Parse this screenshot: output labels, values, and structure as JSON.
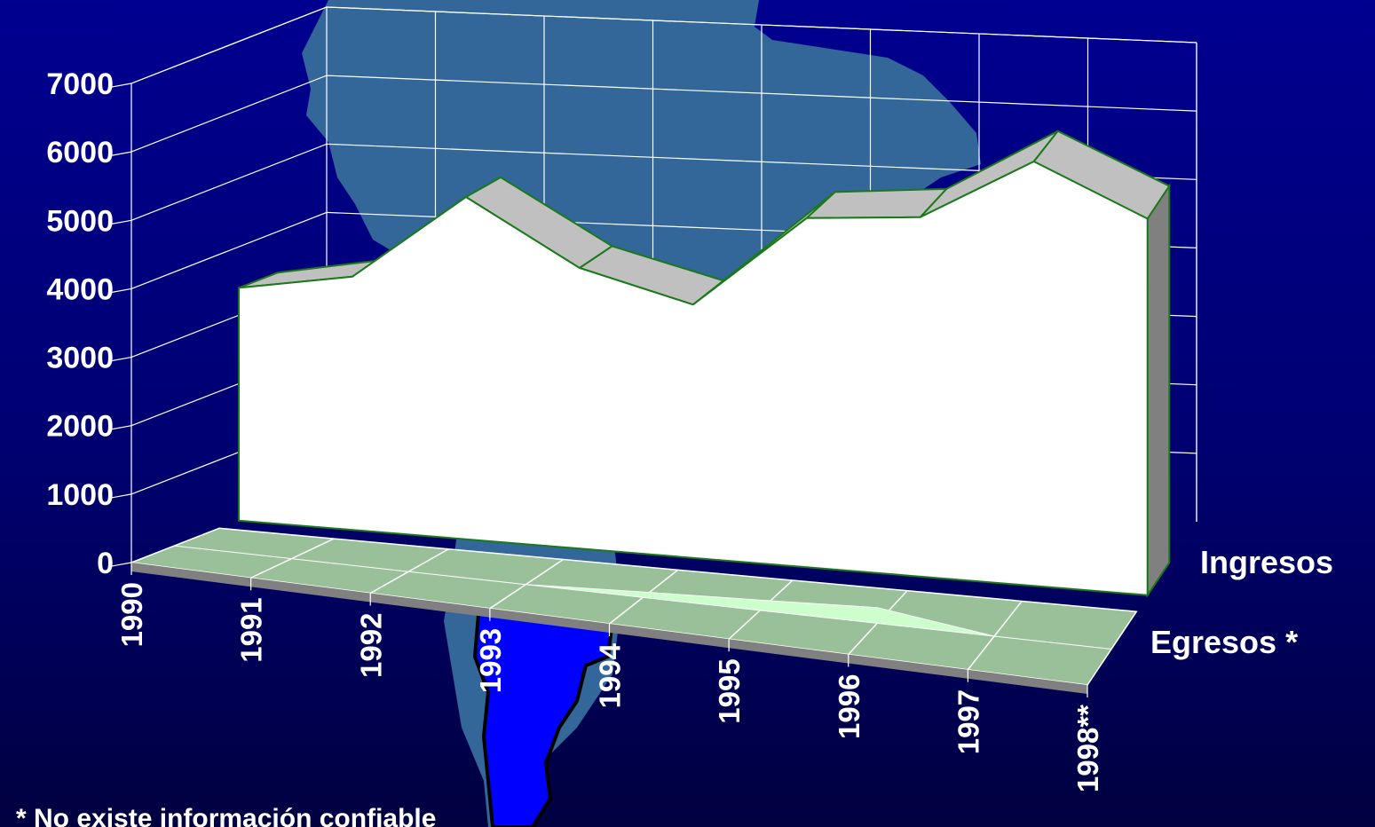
{
  "chart_data": {
    "type": "area",
    "categories": [
      "1990",
      "1991",
      "1992",
      "1993",
      "1994",
      "1995",
      "1996",
      "1997",
      "1998**"
    ],
    "series": [
      {
        "name": "Ingresos",
        "values": [
          3400,
          3700,
          5000,
          4100,
          3700,
          5100,
          5250,
          6200,
          5500
        ]
      },
      {
        "name": "Egresos *",
        "values": [
          0,
          0,
          0,
          0,
          80,
          150,
          230,
          0,
          0
        ]
      }
    ],
    "yticks": [
      "0",
      "1000",
      "2000",
      "3000",
      "4000",
      "5000",
      "6000",
      "7000"
    ],
    "ylim": [
      0,
      7000
    ],
    "grid": true,
    "footnote": "* No existe información confiable",
    "colors": {
      "ingresos_front": "#ffffff",
      "ingresos_top": "#c0c0c0",
      "ingresos_side": "#808080",
      "ingresos_outline": "#1a7a1a",
      "egresos_fill": "#ccffcc",
      "floor": "#99c099",
      "floor_edge": "#808080",
      "map_continent": "#336699",
      "map_country": "#0000ff",
      "grid": "#ffffff"
    },
    "background_map_icon": "south-america-map-icon"
  }
}
